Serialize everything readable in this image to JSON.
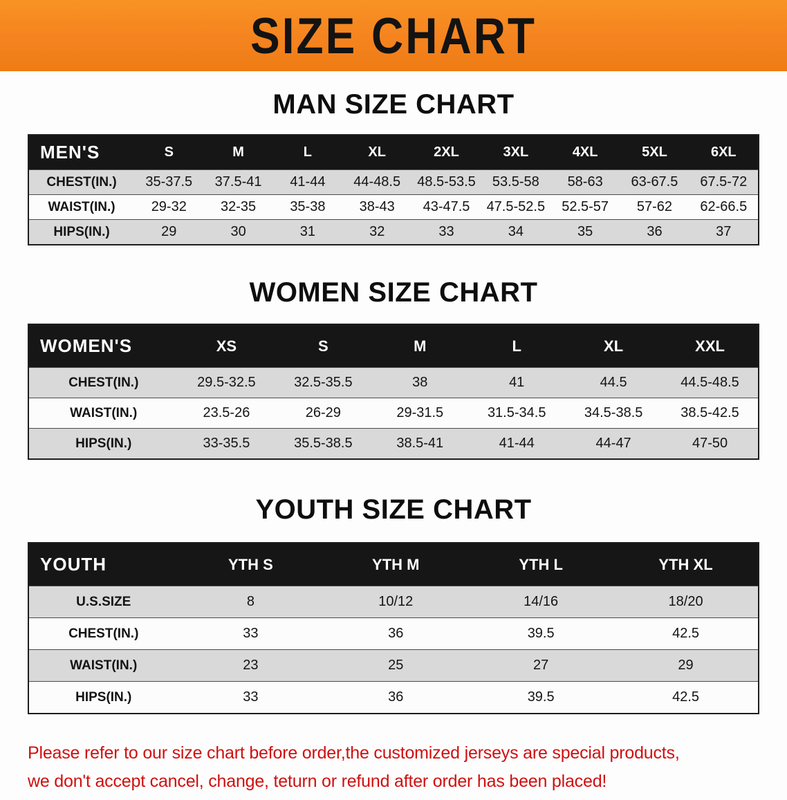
{
  "banner": {
    "title": "SIZE CHART"
  },
  "sections": [
    {
      "id": "men",
      "heading": "MAN SIZE CHART",
      "table": {
        "header": [
          "MEN'S",
          "S",
          "M",
          "L",
          "XL",
          "2XL",
          "3XL",
          "4XL",
          "5XL",
          "6XL"
        ],
        "rows": [
          [
            "CHEST(IN.)",
            "35-37.5",
            "37.5-41",
            "41-44",
            "44-48.5",
            "48.5-53.5",
            "53.5-58",
            "58-63",
            "63-67.5",
            "67.5-72"
          ],
          [
            "WAIST(IN.)",
            "29-32",
            "32-35",
            "35-38",
            "38-43",
            "43-47.5",
            "47.5-52.5",
            "52.5-57",
            "57-62",
            "62-66.5"
          ],
          [
            "HIPS(IN.)",
            "29",
            "30",
            "31",
            "32",
            "33",
            "34",
            "35",
            "36",
            "37"
          ]
        ]
      }
    },
    {
      "id": "women",
      "heading": "WOMEN SIZE CHART",
      "table": {
        "header": [
          "WOMEN'S",
          "XS",
          "S",
          "M",
          "L",
          "XL",
          "XXL"
        ],
        "rows": [
          [
            "CHEST(IN.)",
            "29.5-32.5",
            "32.5-35.5",
            "38",
            "41",
            "44.5",
            "44.5-48.5"
          ],
          [
            "WAIST(IN.)",
            "23.5-26",
            "26-29",
            "29-31.5",
            "31.5-34.5",
            "34.5-38.5",
            "38.5-42.5"
          ],
          [
            "HIPS(IN.)",
            "33-35.5",
            "35.5-38.5",
            "38.5-41",
            "41-44",
            "44-47",
            "47-50"
          ]
        ]
      }
    },
    {
      "id": "youth",
      "heading": "YOUTH SIZE CHART",
      "table": {
        "header": [
          "YOUTH",
          "YTH S",
          "YTH M",
          "YTH L",
          "YTH XL"
        ],
        "rows": [
          [
            "U.S.SIZE",
            "8",
            "10/12",
            "14/16",
            "18/20"
          ],
          [
            "CHEST(IN.)",
            "33",
            "36",
            "39.5",
            "42.5"
          ],
          [
            "WAIST(IN.)",
            "23",
            "25",
            "27",
            "29"
          ],
          [
            "HIPS(IN.)",
            "33",
            "36",
            "39.5",
            "42.5"
          ]
        ]
      }
    }
  ],
  "footer": {
    "line1": "Please refer to our size chart before order,the customized jerseys are special products,",
    "line2": "we don't accept cancel, change, teturn or refund after order has been placed!"
  },
  "colors": {
    "banner_bg": "#f5831f",
    "header_bg": "#161616",
    "stripe_gray": "#d9d9d9",
    "note_red": "#d01010"
  }
}
